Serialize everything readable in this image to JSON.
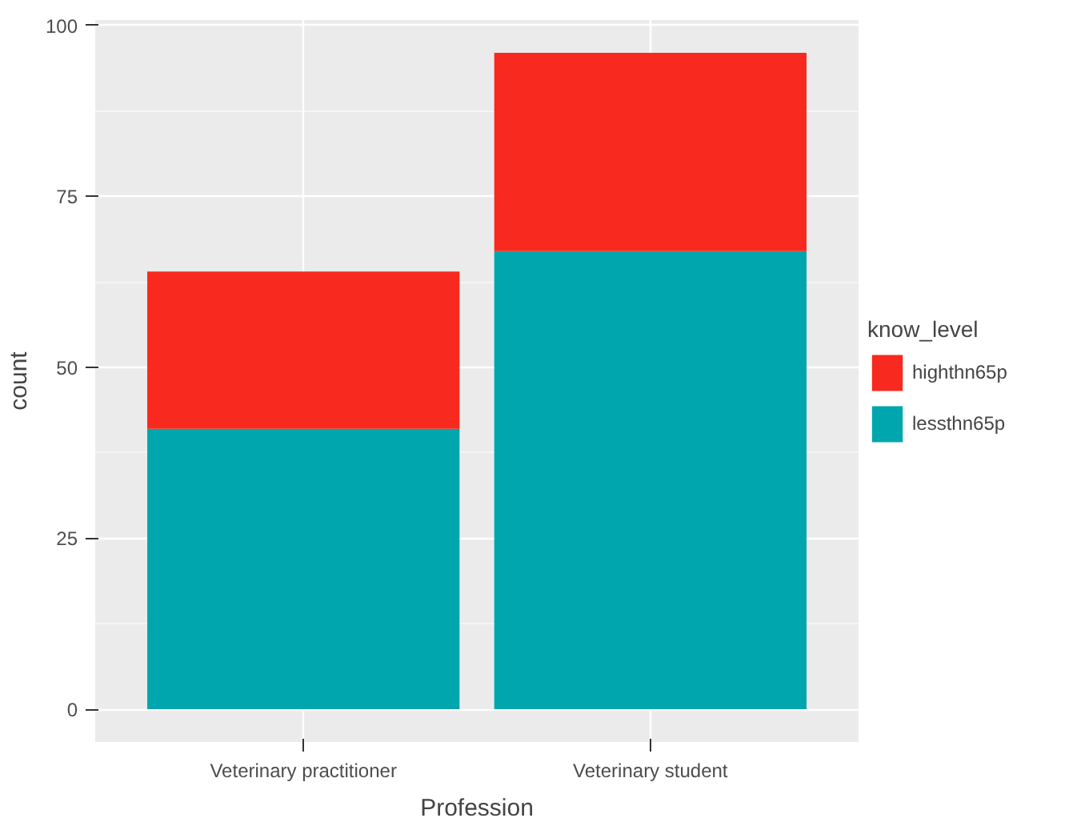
{
  "chart_data": {
    "type": "bar",
    "stacked": true,
    "xlabel": "Profession",
    "ylabel": "count",
    "legend_title": "know_level",
    "categories": [
      "Veterinary practitioner",
      "Veterinary student"
    ],
    "series": [
      {
        "name": "lessthn65p",
        "color": "#00a6ad",
        "values": [
          41,
          67
        ]
      },
      {
        "name": "highthn65p",
        "color": "#f8291e",
        "values": [
          23,
          29
        ]
      }
    ],
    "ylim": [
      -4.8,
      100.8
    ],
    "yticks": [
      0,
      25,
      50,
      75,
      100
    ],
    "grid": true,
    "legend": "right"
  }
}
